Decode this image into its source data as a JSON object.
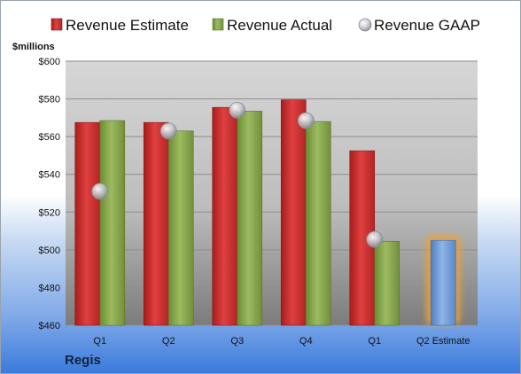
{
  "company": "Regis",
  "colors": {
    "estimate": "#cc2b2b",
    "actual": "#86a84a",
    "gaap": "#c9ccd2",
    "forecast": "#6e9bd6",
    "highlight": "#f0a030"
  },
  "chart_data": {
    "type": "bar",
    "ylabel": "$millions",
    "ylim": [
      460,
      600
    ],
    "yticks": [
      "$460",
      "$480",
      "$500",
      "$520",
      "$540",
      "$560",
      "$580",
      "$600"
    ],
    "ytick_values": [
      460,
      480,
      500,
      520,
      540,
      560,
      580,
      600
    ],
    "categories": [
      "Q1",
      "Q2",
      "Q3",
      "Q4",
      "Q1",
      "Q2 Estimate"
    ],
    "legend_position": "top",
    "grid": true,
    "series": [
      {
        "name": "Revenue Estimate",
        "kind": "bar",
        "values": [
          567.5,
          567.5,
          575.5,
          579.5,
          552.5,
          505
        ]
      },
      {
        "name": "Revenue Actual",
        "kind": "bar",
        "values": [
          568.5,
          563,
          573.5,
          568,
          504.5,
          null
        ]
      },
      {
        "name": "Revenue GAAP",
        "kind": "marker",
        "values": [
          531,
          563,
          574,
          568.5,
          505.5,
          null
        ]
      }
    ]
  }
}
